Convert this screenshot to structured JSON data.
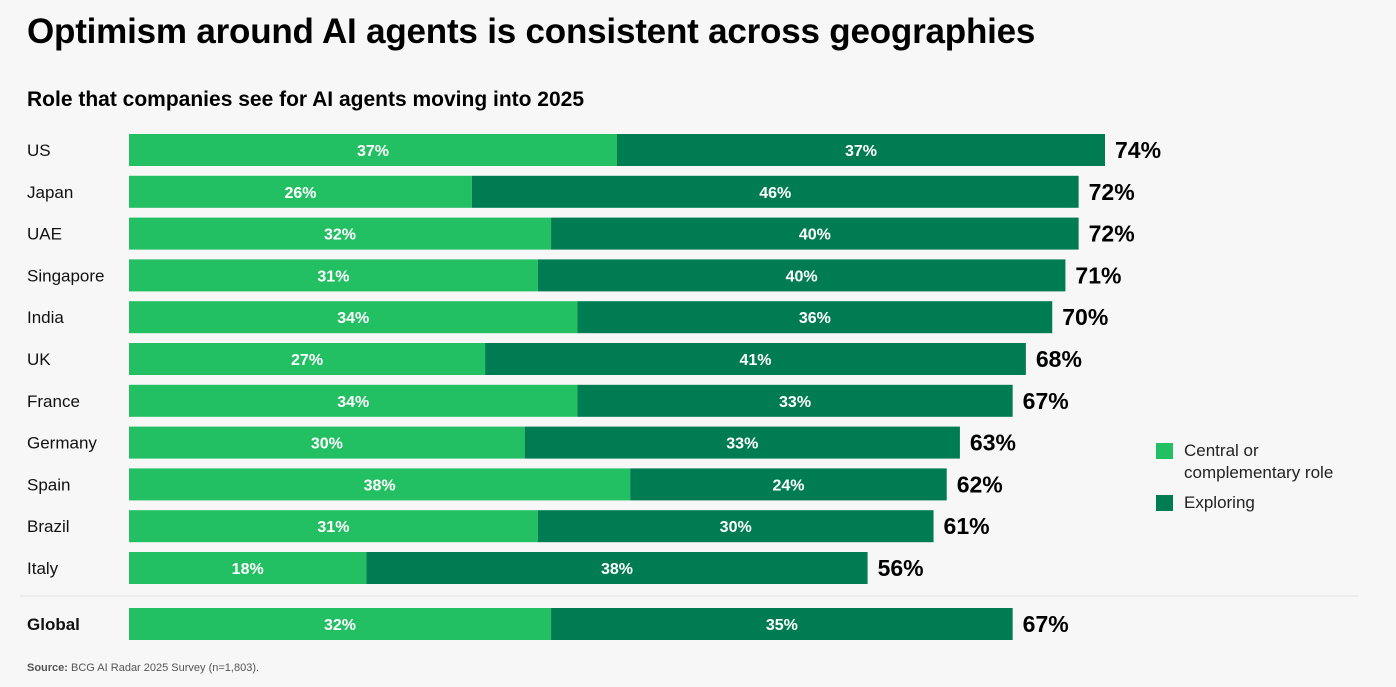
{
  "header": {
    "title": "Optimism around AI agents is consistent across geographies",
    "subtitle": "Role that companies see for AI agents moving into 2025"
  },
  "colors": {
    "central": "#22bf63",
    "exploring": "#007c53",
    "text_on_bar": "#ffffff",
    "total_label": "#000000",
    "divider": "#e2e2e2"
  },
  "legend": {
    "items": [
      {
        "label": "Central or complementary role",
        "color_key": "central"
      },
      {
        "label": "Exploring",
        "color_key": "exploring"
      }
    ]
  },
  "footer": {
    "source_label": "Source:",
    "source_text": " BCG AI Radar 2025 Survey (n=1,803)."
  },
  "chart_data": {
    "type": "bar",
    "orientation": "horizontal",
    "stacked": true,
    "title": "Optimism around AI agents is consistent across geographies",
    "subtitle": "Role that companies see for AI agents moving into 2025",
    "xlabel": "",
    "ylabel": "",
    "unit": "%",
    "grid": false,
    "legend_position": "right",
    "categories": [
      "US",
      "Japan",
      "UAE",
      "Singapore",
      "India",
      "UK",
      "France",
      "Germany",
      "Spain",
      "Brazil",
      "Italy"
    ],
    "series": [
      {
        "name": "Central or complementary role",
        "values": [
          37,
          26,
          32,
          31,
          34,
          27,
          34,
          30,
          38,
          31,
          18
        ]
      },
      {
        "name": "Exploring",
        "values": [
          37,
          46,
          40,
          40,
          36,
          41,
          33,
          33,
          24,
          30,
          38
        ]
      }
    ],
    "totals": [
      74,
      72,
      72,
      71,
      70,
      68,
      67,
      63,
      62,
      61,
      56
    ],
    "summary_row": {
      "category": "Global",
      "values": [
        32,
        35
      ],
      "total": 67
    },
    "source": "Source: BCG AI Radar 2025 Survey (n=1,803)."
  }
}
